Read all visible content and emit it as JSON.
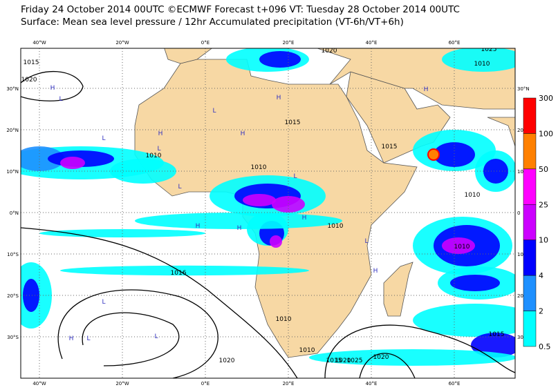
{
  "header": {
    "line1": "Friday 24 October 2014 00UTC ©ECMWF Forecast t+096 VT: Tuesday 28 October 2014 00UTC",
    "line2": "Surface: Mean sea level pressure / 12hr Accumulated precipitation (VT-6h/VT+6h)"
  },
  "longitude_labels": [
    "40°W",
    "20°W",
    "0°E",
    "20°E",
    "40°E",
    "60°E"
  ],
  "latitude_labels_left": [
    "30°N",
    "20°N",
    "10°N",
    "0°N",
    "10°S",
    "20°S",
    "30°S"
  ],
  "latitude_labels_right": [
    "30°N",
    "20",
    "10",
    "0",
    "10",
    "20",
    "30"
  ],
  "legend": {
    "levels": [
      "300",
      "100",
      "50",
      "25",
      "10",
      "4",
      "2",
      "0.5"
    ],
    "colors": [
      "#ff0000",
      "#ff8000",
      "#ff00ff",
      "#cc00ff",
      "#0000ff",
      "#1e90ff",
      "#00ffff"
    ]
  },
  "isobar_labels": [
    "1015",
    "1020",
    "1010",
    "1010",
    "1015",
    "1015",
    "1010",
    "1010",
    "1010",
    "1016",
    "1010",
    "1010",
    "1015",
    "1020",
    "1025",
    "1020",
    "1015",
    "1020",
    "1020",
    "1025",
    "1010"
  ],
  "pressure_centres": [
    "H",
    "L",
    "L",
    "H",
    "L",
    "H",
    "H",
    "L",
    "H",
    "L",
    "H",
    "L",
    "H",
    "L",
    "H",
    "L",
    "L",
    "H",
    "L",
    "H"
  ]
}
